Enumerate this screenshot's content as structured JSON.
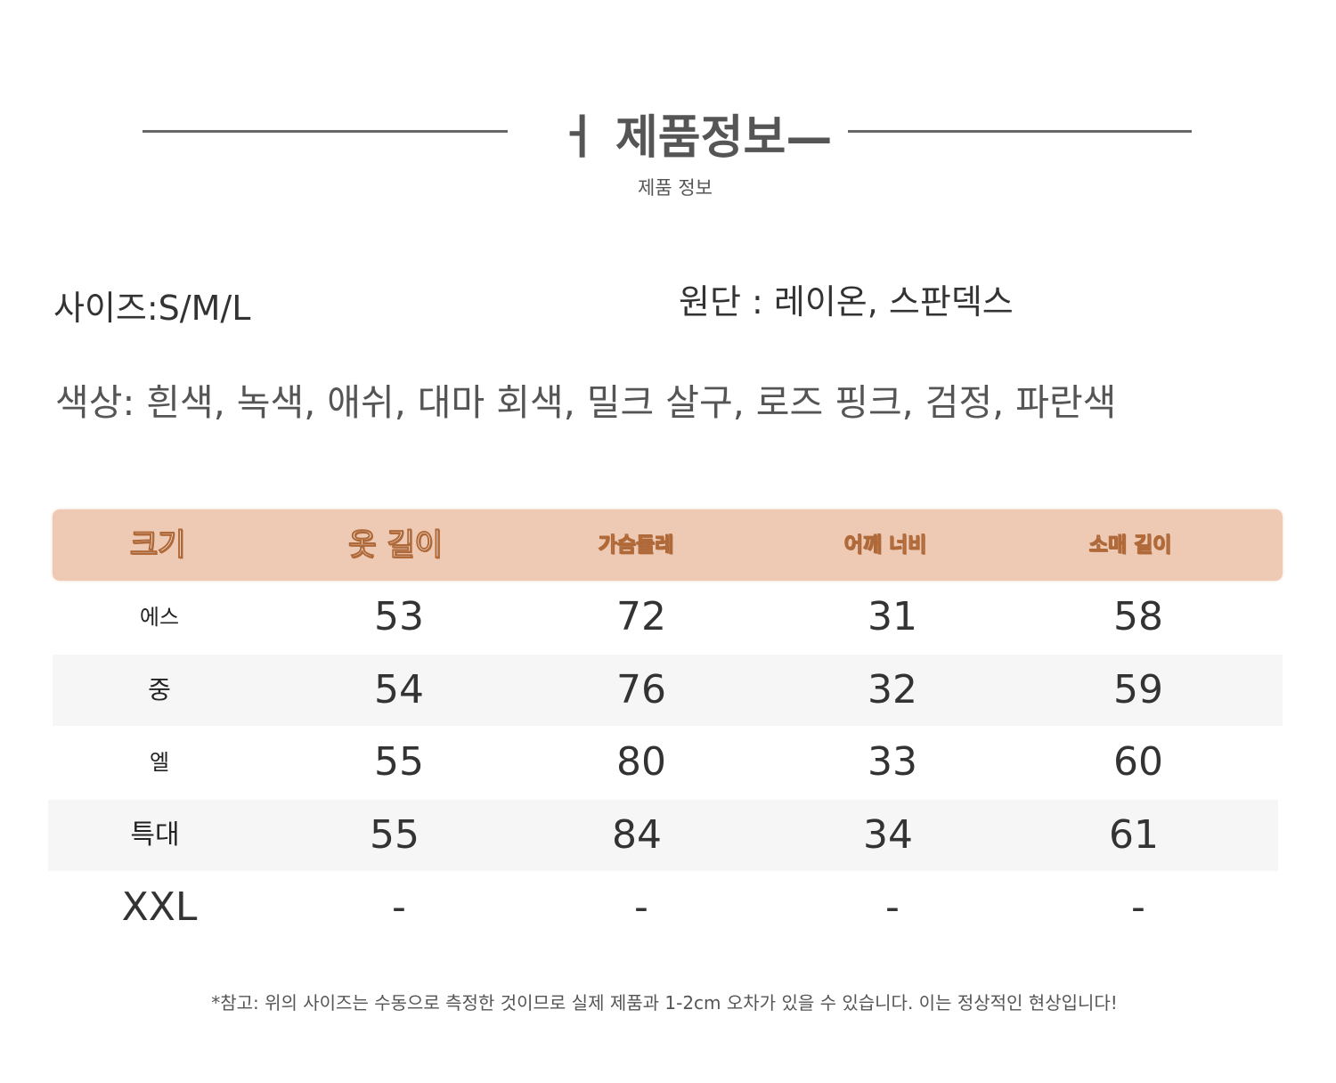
{
  "header": {
    "mark": "ㅓ",
    "title": "제품정보—",
    "subtitle": "제품 정보"
  },
  "info": {
    "size": "사이즈:S/M/L",
    "fabric": "원단 : 레이온, 스판덱스",
    "colors": "색상: 흰색, 녹색, 애쉬, 대마 회색, 밀크 살구, 로즈 핑크, 검정, 파란색"
  },
  "table": {
    "header_color": "#eecab4",
    "columns": [
      "크기",
      "옷 길이",
      "가슴둘레",
      "어깨 너비",
      "소매 길이"
    ],
    "rows": [
      [
        "에스",
        "53",
        "72",
        "31",
        "58"
      ],
      [
        "중",
        "54",
        "76",
        "32",
        "59"
      ],
      [
        "엘",
        "55",
        "80",
        "33",
        "60"
      ],
      [
        "특대",
        "55",
        "84",
        "34",
        "61"
      ],
      [
        "XXL",
        "-",
        "-",
        "-",
        "-"
      ]
    ]
  },
  "note": "*참고: 위의 사이즈는 수동으로 측정한 것이므로 실제 제품과 1-2cm 오차가 있을 수 있습니다. 이는 정상적인 현상입니다!"
}
